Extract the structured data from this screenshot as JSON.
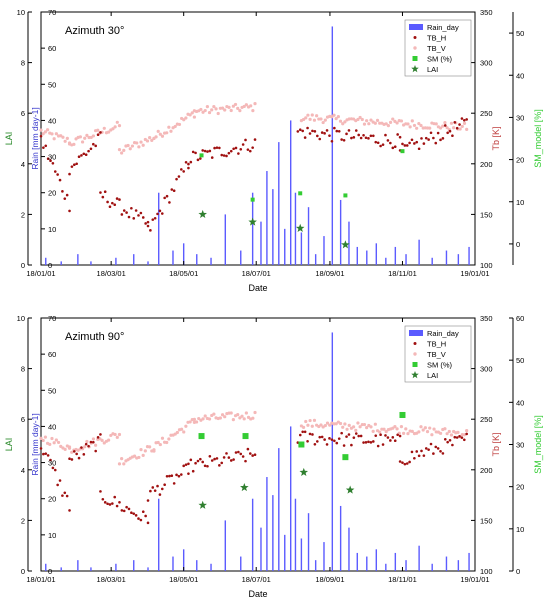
{
  "figure": {
    "xlabel": "Date",
    "x_ticks": [
      "18/01/01",
      "18/03/01",
      "18/05/01",
      "18/07/01",
      "18/09/01",
      "18/11/01",
      "19/01/01"
    ],
    "left_axis": {
      "label": "LAI",
      "ticks": [
        0,
        2,
        4,
        6,
        8,
        10
      ],
      "range": [
        0,
        10
      ]
    },
    "rain_axis": {
      "label": "Rain [mm day-1]",
      "ticks": [
        0,
        10,
        20,
        30,
        40,
        50,
        60,
        70
      ],
      "range": [
        0,
        70
      ]
    },
    "tb_axis": {
      "label": "Tb [K]",
      "ticks": [
        100,
        150,
        200,
        250,
        300,
        350
      ],
      "range": [
        100,
        350
      ]
    },
    "colors": {
      "rain": "#5b5bff",
      "tb_h": "#a01010",
      "tb_v": "#f4b8b8",
      "sm": "#33cc33",
      "lai": "#2f7f2f",
      "axis": "#000000",
      "lai_axis": "#2a8a2a",
      "sm_axis": "#33cc33",
      "tb_axis": "#c04040",
      "rain_axis": "#3333cc"
    }
  },
  "chart_data": [
    {
      "type": "scatter",
      "title": "Azimuth 30°",
      "legend_position": "top-right",
      "legend": [
        "Rain_day",
        "TB_H",
        "TB_V",
        "SM (%)",
        "LAI"
      ],
      "sm_axis": {
        "label": "SM_model [%]",
        "ticks": [
          0,
          10,
          20,
          30,
          40,
          50
        ],
        "range": [
          -5,
          55
        ]
      },
      "lai": {
        "dates": [
          "2018-05-17",
          "2018-06-28",
          "2018-08-07",
          "2018-09-14"
        ],
        "values": [
          2.0,
          1.7,
          1.45,
          0.8
        ]
      },
      "sm": {
        "dates": [
          "2018-05-16",
          "2018-06-28",
          "2018-08-07",
          "2018-09-14",
          "2018-11-01"
        ],
        "values": [
          21,
          10.5,
          12,
          11.5,
          22
        ]
      },
      "tb_v_segments": [
        {
          "start": "2018-01-01",
          "end": "2018-01-25",
          "level": [
            232,
            222
          ]
        },
        {
          "start": "2018-01-25",
          "end": "2018-03-08",
          "level": [
            220,
            238
          ]
        },
        {
          "start": "2018-03-08",
          "end": "2018-04-06",
          "level": [
            212,
            226
          ]
        },
        {
          "start": "2018-04-06",
          "end": "2018-05-10",
          "level": [
            226,
            250
          ]
        },
        {
          "start": "2018-05-10",
          "end": "2018-06-30",
          "level": [
            252,
            256
          ]
        },
        {
          "start": "2018-08-08",
          "end": "2018-12-25",
          "level": [
            246,
            236
          ]
        }
      ],
      "tb_h_segments": [
        {
          "start": "2018-01-01",
          "end": "2018-01-25",
          "level": [
            224,
            160
          ]
        },
        {
          "start": "2018-01-25",
          "end": "2018-02-20",
          "level": [
            195,
            225
          ]
        },
        {
          "start": "2018-02-20",
          "end": "2018-04-01",
          "level": [
            170,
            140
          ]
        },
        {
          "start": "2018-04-01",
          "end": "2018-05-05",
          "level": [
            133,
            200
          ]
        },
        {
          "start": "2018-05-05",
          "end": "2018-06-30",
          "level": [
            205,
            220
          ]
        },
        {
          "start": "2018-08-05",
          "end": "2018-10-30",
          "level": [
            232,
            222
          ]
        },
        {
          "start": "2018-10-30",
          "end": "2018-12-25",
          "level": [
            212,
            240
          ]
        }
      ],
      "rain": {
        "dates": [
          "2018-01-05",
          "2018-01-18",
          "2018-02-01",
          "2018-02-12",
          "2018-03-05",
          "2018-03-20",
          "2018-04-01",
          "2018-04-10",
          "2018-04-22",
          "2018-05-01",
          "2018-05-12",
          "2018-05-24",
          "2018-06-05",
          "2018-06-18",
          "2018-06-28",
          "2018-07-05",
          "2018-07-10",
          "2018-07-15",
          "2018-07-20",
          "2018-07-25",
          "2018-07-30",
          "2018-08-03",
          "2018-08-08",
          "2018-08-14",
          "2018-08-20",
          "2018-08-27",
          "2018-09-03",
          "2018-09-10",
          "2018-09-17",
          "2018-09-24",
          "2018-10-02",
          "2018-10-10",
          "2018-10-18",
          "2018-10-26",
          "2018-11-04",
          "2018-11-15",
          "2018-11-26",
          "2018-12-08",
          "2018-12-18",
          "2018-12-27"
        ],
        "values": [
          2,
          1,
          3,
          1,
          2,
          3,
          1,
          20,
          4,
          6,
          3,
          2,
          14,
          4,
          20,
          12,
          26,
          21,
          34,
          10,
          40,
          20,
          9,
          16,
          3,
          8,
          66,
          18,
          12,
          5,
          4,
          6,
          2,
          5,
          3,
          7,
          2,
          4,
          3,
          5
        ]
      }
    },
    {
      "type": "scatter",
      "title": "Azimuth 90°",
      "legend_position": "top-right",
      "legend": [
        "Rain_day",
        "TB_H",
        "TB_V",
        "SM (%)",
        "LAI"
      ],
      "sm_axis": {
        "label": "SM_model [%]",
        "ticks": [
          0,
          10,
          20,
          30,
          40,
          50,
          60
        ],
        "range": [
          0,
          60
        ]
      },
      "lai": {
        "dates": [
          "2018-05-17",
          "2018-06-21",
          "2018-08-10",
          "2018-09-18"
        ],
        "values": [
          2.6,
          3.3,
          3.9,
          3.2
        ]
      },
      "sm": {
        "dates": [
          "2018-05-16",
          "2018-06-22",
          "2018-08-08",
          "2018-09-14",
          "2018-11-01"
        ],
        "values": [
          32,
          32,
          30,
          27,
          37
        ]
      },
      "tb_v_segments": [
        {
          "start": "2018-01-01",
          "end": "2018-01-25",
          "level": [
            232,
            222
          ]
        },
        {
          "start": "2018-01-25",
          "end": "2018-03-08",
          "level": [
            220,
            235
          ]
        },
        {
          "start": "2018-03-08",
          "end": "2018-04-06",
          "level": [
            208,
            222
          ]
        },
        {
          "start": "2018-04-06",
          "end": "2018-05-10",
          "level": [
            222,
            248
          ]
        },
        {
          "start": "2018-05-10",
          "end": "2018-06-30",
          "level": [
            250,
            254
          ]
        },
        {
          "start": "2018-08-08",
          "end": "2018-12-25",
          "level": [
            246,
            236
          ]
        }
      ],
      "tb_h_segments": [
        {
          "start": "2018-01-01",
          "end": "2018-01-25",
          "level": [
            225,
            165
          ]
        },
        {
          "start": "2018-01-25",
          "end": "2018-02-20",
          "level": [
            210,
            228
          ]
        },
        {
          "start": "2018-02-20",
          "end": "2018-04-01",
          "level": [
            175,
            150
          ]
        },
        {
          "start": "2018-04-01",
          "end": "2018-05-05",
          "level": [
            175,
            200
          ]
        },
        {
          "start": "2018-05-05",
          "end": "2018-06-30",
          "level": [
            203,
            215
          ]
        },
        {
          "start": "2018-08-05",
          "end": "2018-10-30",
          "level": [
            232,
            228
          ]
        },
        {
          "start": "2018-10-30",
          "end": "2018-12-25",
          "level": [
            210,
            230
          ]
        }
      ],
      "rain": {
        "dates": [
          "2018-01-05",
          "2018-01-18",
          "2018-02-01",
          "2018-02-12",
          "2018-03-05",
          "2018-03-20",
          "2018-04-01",
          "2018-04-10",
          "2018-04-22",
          "2018-05-01",
          "2018-05-12",
          "2018-05-24",
          "2018-06-05",
          "2018-06-18",
          "2018-06-28",
          "2018-07-05",
          "2018-07-10",
          "2018-07-15",
          "2018-07-20",
          "2018-07-25",
          "2018-07-30",
          "2018-08-03",
          "2018-08-08",
          "2018-08-14",
          "2018-08-20",
          "2018-08-27",
          "2018-09-03",
          "2018-09-10",
          "2018-09-17",
          "2018-09-24",
          "2018-10-02",
          "2018-10-10",
          "2018-10-18",
          "2018-10-26",
          "2018-11-04",
          "2018-11-15",
          "2018-11-26",
          "2018-12-08",
          "2018-12-18",
          "2018-12-27"
        ],
        "values": [
          2,
          1,
          3,
          1,
          2,
          3,
          1,
          20,
          4,
          6,
          3,
          2,
          14,
          4,
          20,
          12,
          26,
          21,
          34,
          10,
          40,
          20,
          9,
          16,
          3,
          8,
          66,
          18,
          12,
          5,
          4,
          6,
          2,
          5,
          3,
          7,
          2,
          4,
          3,
          5
        ]
      }
    }
  ]
}
